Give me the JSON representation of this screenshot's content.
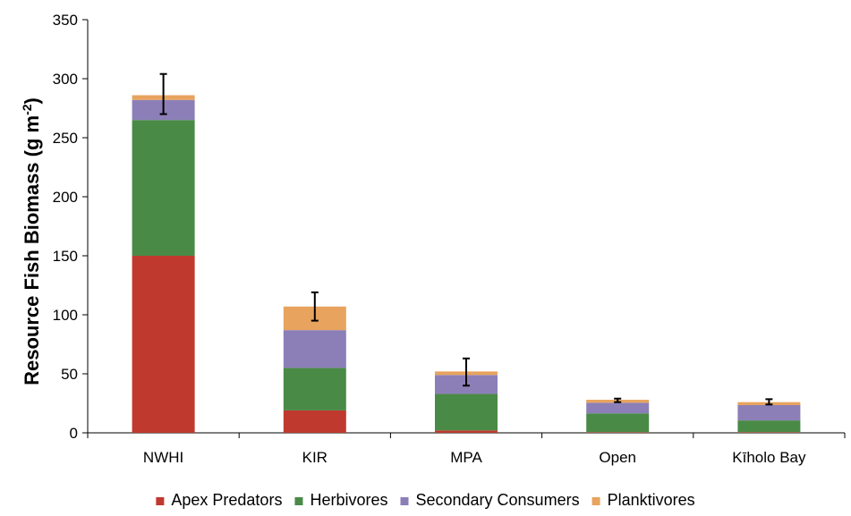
{
  "chart_data": {
    "type": "bar",
    "stacked": true,
    "categories": [
      "NWHI",
      "KIR",
      "MPA",
      "Open",
      "Kīholo Bay"
    ],
    "series": [
      {
        "name": "Apex Predators",
        "color": "#c0392f",
        "values": [
          150,
          19,
          2,
          0.5,
          0.5
        ]
      },
      {
        "name": "Herbivores",
        "color": "#4a8a47",
        "values": [
          115,
          36,
          31,
          16,
          10
        ]
      },
      {
        "name": "Secondary Consumers",
        "color": "#8c7fb8",
        "values": [
          17,
          32,
          16,
          9,
          13
        ]
      },
      {
        "name": "Planktivores",
        "color": "#e8a35e",
        "values": [
          4,
          20,
          3,
          2.5,
          2.5
        ]
      }
    ],
    "error_bars": [
      {
        "low": 270,
        "high": 304
      },
      {
        "low": 95,
        "high": 119
      },
      {
        "low": 40,
        "high": 63
      },
      {
        "low": 26,
        "high": 29
      },
      {
        "low": 24,
        "high": 28.5
      }
    ],
    "title": "",
    "xlabel": "",
    "ylabel": "Resource Fish Biomass (g m",
    "ylabel_sup": "-2",
    "ylabel_suffix": ")",
    "ylim": [
      0,
      350
    ],
    "yticks": [
      0,
      50,
      100,
      150,
      200,
      250,
      300,
      350
    ],
    "grid": false,
    "legend_position": "bottom"
  }
}
